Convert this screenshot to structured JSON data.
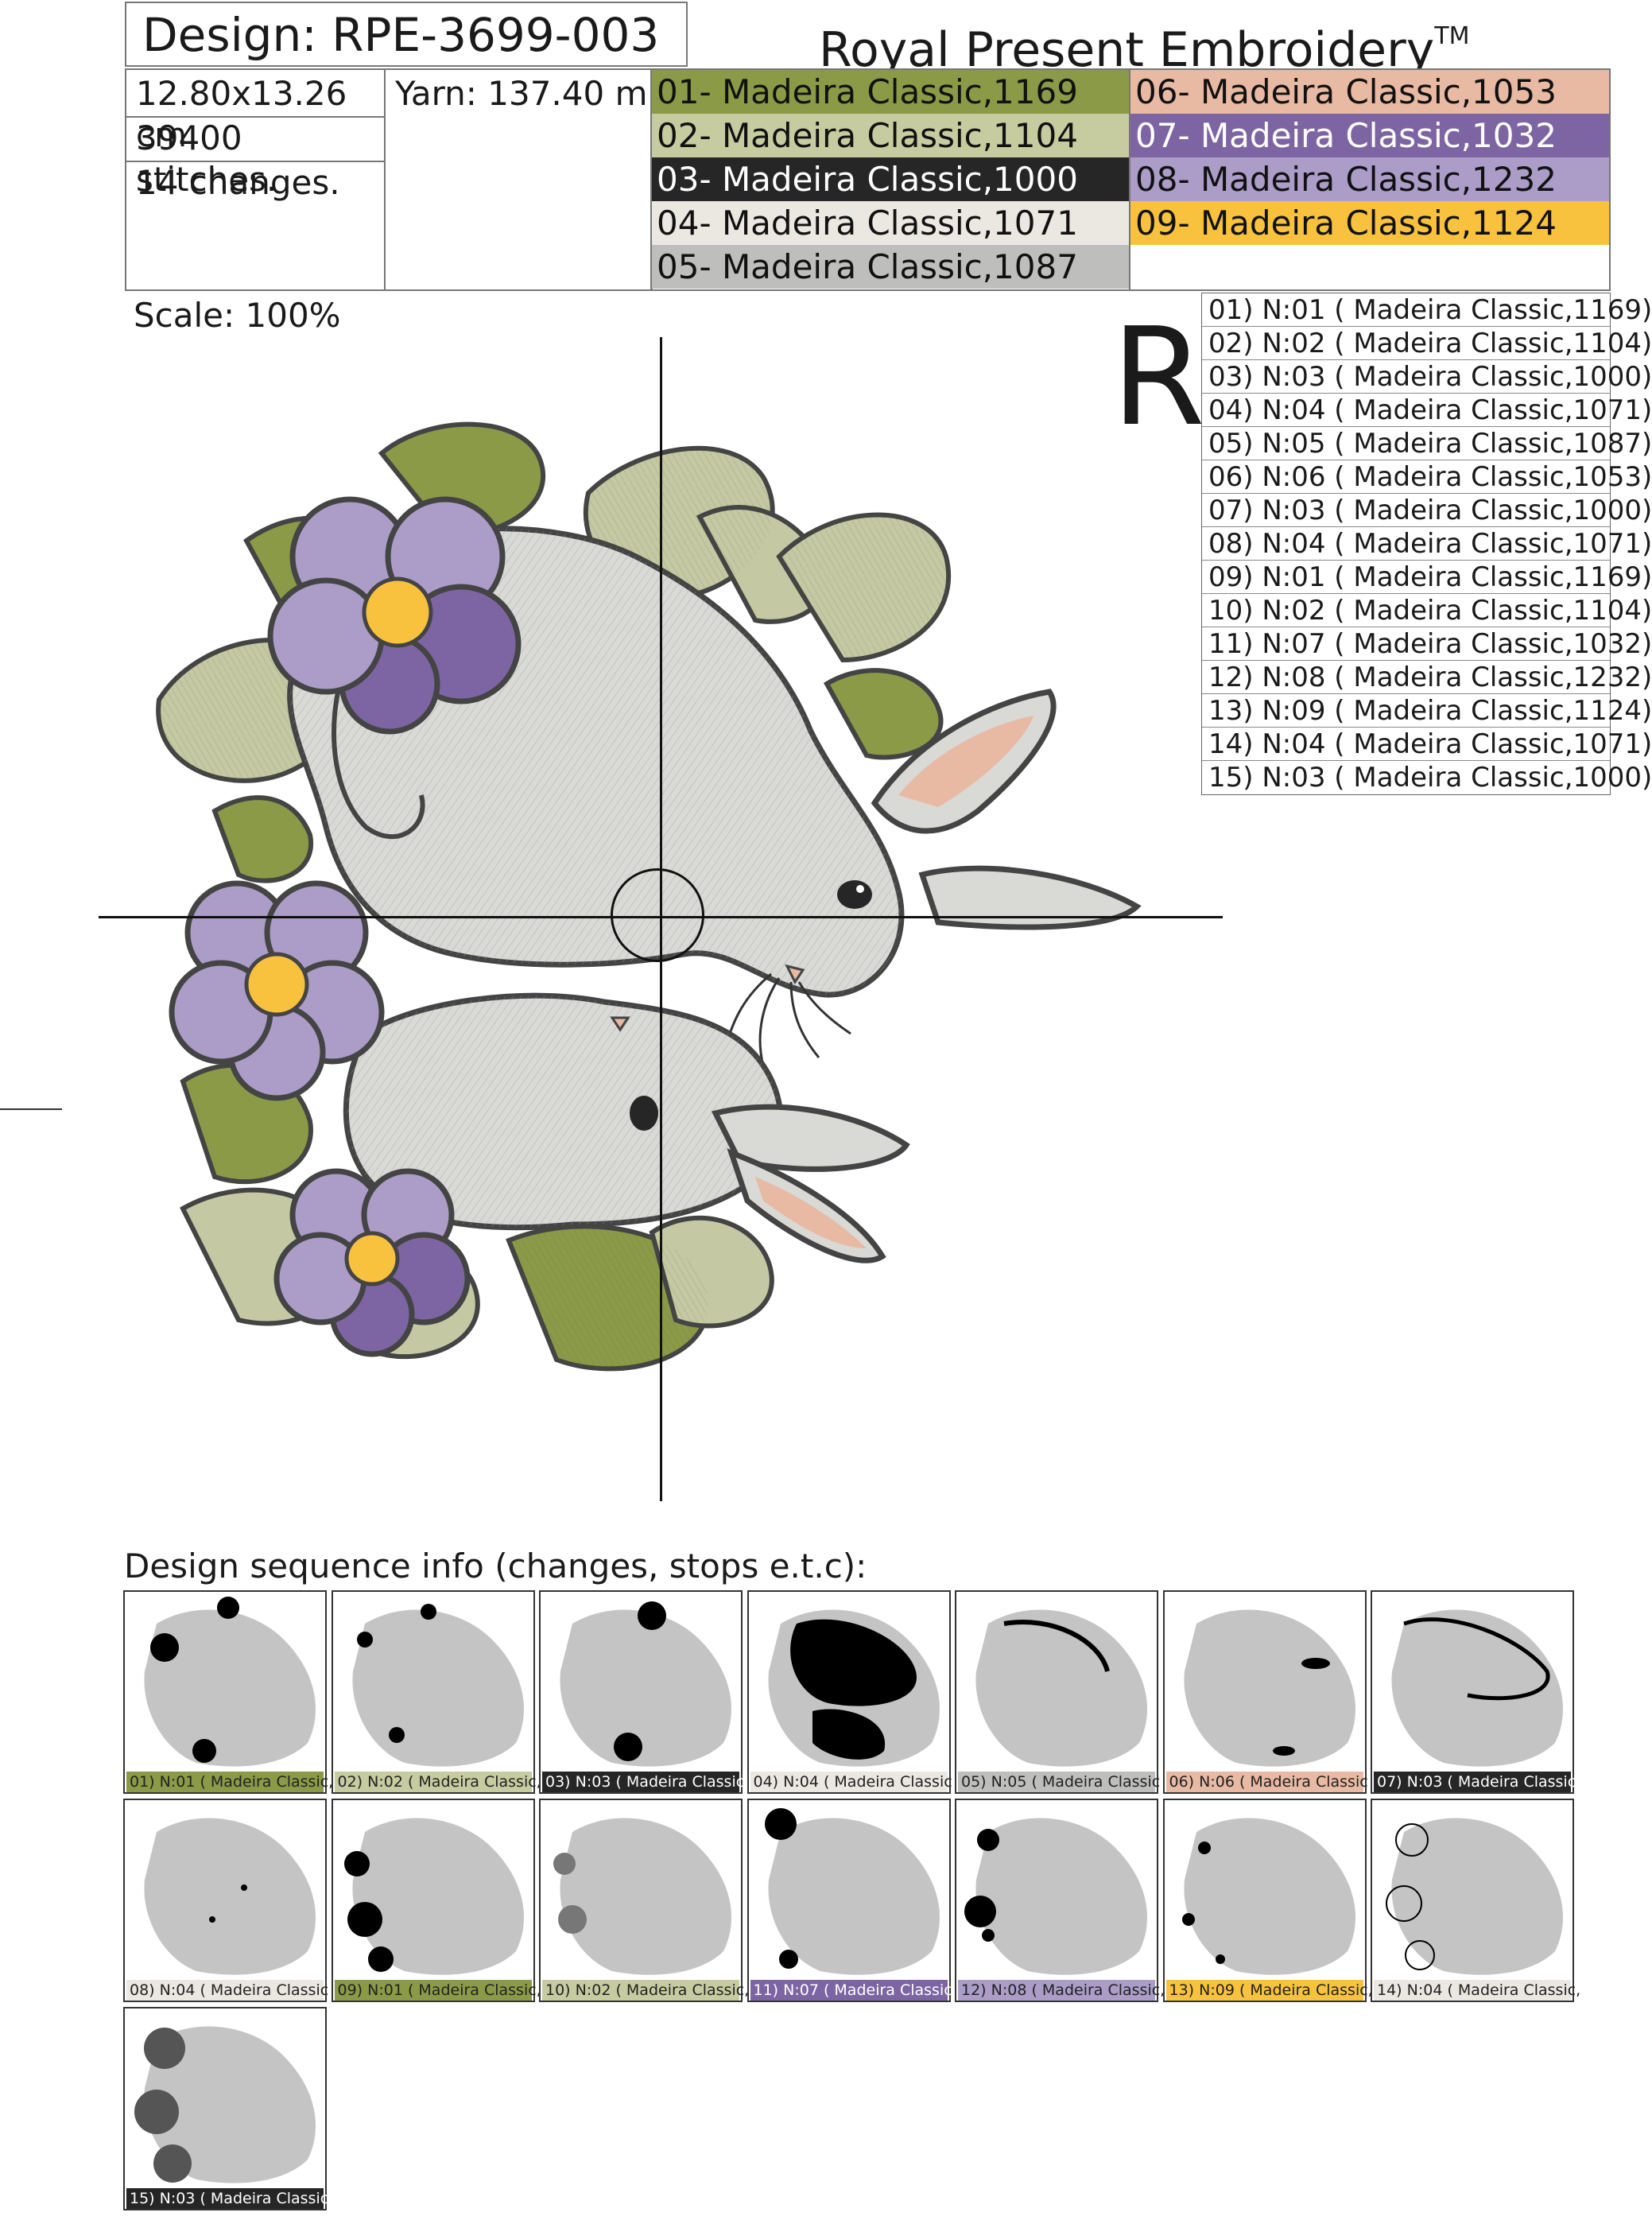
{
  "header": {
    "design_label": "Design: RPE-3699-003",
    "brand": "Royal Present Embroidery",
    "brand_mark": "TM"
  },
  "info": {
    "size": "12.80x13.26 cm",
    "yarn": "Yarn: 137.40 m",
    "stitches": "39400 stitches.",
    "changes": "14 changes."
  },
  "colors": [
    {
      "label": "01- Madeira Classic,1169",
      "hex": "#8a9a47",
      "text": "#111111"
    },
    {
      "label": "02- Madeira Classic,1104",
      "hex": "#c6cca0",
      "text": "#111111"
    },
    {
      "label": "03- Madeira Classic,1000",
      "hex": "#262626",
      "text": "#ffffff"
    },
    {
      "label": "04- Madeira Classic,1071",
      "hex": "#ebe7e1",
      "text": "#111111"
    },
    {
      "label": "05- Madeira Classic,1087",
      "hex": "#bebfbc",
      "text": "#111111"
    },
    {
      "label": "06- Madeira Classic,1053",
      "hex": "#e8b9a3",
      "text": "#111111"
    },
    {
      "label": "07- Madeira Classic,1032",
      "hex": "#7d65a3",
      "text": "#ffffff"
    },
    {
      "label": "08- Madeira Classic,1232",
      "hex": "#ab9dc8",
      "text": "#111111"
    },
    {
      "label": "09- Madeira Classic,1124",
      "hex": "#f8c23f",
      "text": "#111111"
    }
  ],
  "scale": "Scale: 100%",
  "orientation_letter": "R",
  "stops": [
    "01) N:01 ( Madeira Classic,1169)",
    "02) N:02 ( Madeira Classic,1104)",
    "03) N:03 ( Madeira Classic,1000)",
    "04) N:04 ( Madeira Classic,1071)",
    "05) N:05 ( Madeira Classic,1087)",
    "06) N:06 ( Madeira Classic,1053)",
    "07) N:03 ( Madeira Classic,1000)",
    "08) N:04 ( Madeira Classic,1071)",
    "09) N:01 ( Madeira Classic,1169)",
    "10) N:02 ( Madeira Classic,1104)",
    "11) N:07 ( Madeira Classic,1032)",
    "12) N:08 ( Madeira Classic,1232)",
    "13) N:09 ( Madeira Classic,1124)",
    "14) N:04 ( Madeira Classic,1071)",
    "15) N:03 ( Madeira Classic,1000)"
  ],
  "sequence_title": "Design sequence info (changes, stops e.t.c):",
  "sequence": [
    {
      "label": "01) N:01 ( Madeira Classic,1",
      "color": "#8a9a47",
      "dark": false
    },
    {
      "label": "02) N:02 ( Madeira Classic,",
      "color": "#c6cca0",
      "dark": false
    },
    {
      "label": "03) N:03 ( Madeira Classic",
      "color": "#262626",
      "dark": true
    },
    {
      "label": "04) N:04 ( Madeira Classic",
      "color": "#ebe7e1",
      "dark": false
    },
    {
      "label": "05) N:05 ( Madeira Classic",
      "color": "#bebfbc",
      "dark": false
    },
    {
      "label": "06) N:06 ( Madeira Classic",
      "color": "#e8b9a3",
      "dark": false
    },
    {
      "label": "07) N:03 ( Madeira Classic",
      "color": "#262626",
      "dark": true
    },
    {
      "label": "08) N:04 ( Madeira Classic",
      "color": "#ebe7e1",
      "dark": false
    },
    {
      "label": "09) N:01 ( Madeira Classic,",
      "color": "#8a9a47",
      "dark": false
    },
    {
      "label": "10) N:02 ( Madeira Classic,",
      "color": "#c6cca0",
      "dark": false
    },
    {
      "label": "11) N:07 ( Madeira Classic,1",
      "color": "#7d65a3",
      "dark": true
    },
    {
      "label": "12) N:08 ( Madeira Classic,",
      "color": "#ab9dc8",
      "dark": false
    },
    {
      "label": "13) N:09 ( Madeira Classic,",
      "color": "#f8c23f",
      "dark": false
    },
    {
      "label": "14) N:04 ( Madeira Classic,",
      "color": "#ebe7e1",
      "dark": false
    },
    {
      "label": "15) N:03 ( Madeira Classic,",
      "color": "#262626",
      "dark": true
    }
  ]
}
